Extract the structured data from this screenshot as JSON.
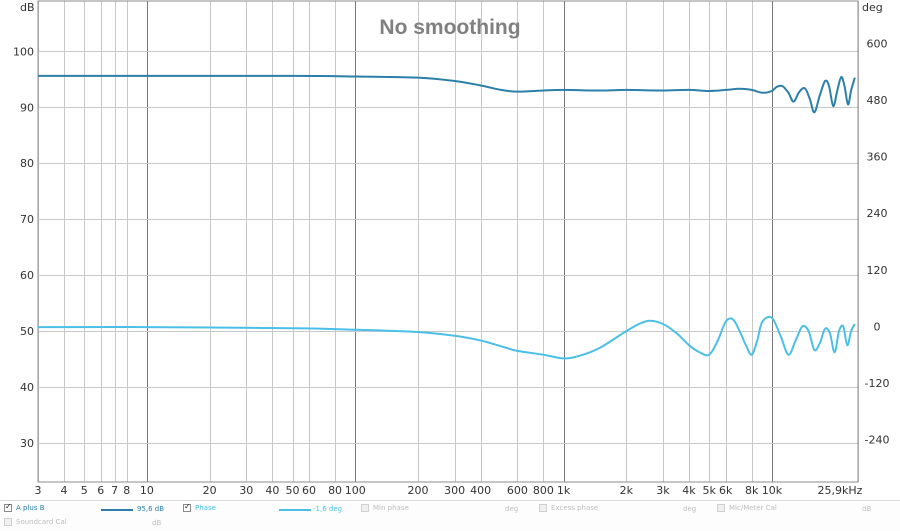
{
  "chart_data": {
    "type": "line",
    "title": "No smoothing",
    "xscale": "log",
    "xlim": [
      3,
      25900
    ],
    "x_ticks": [
      3,
      4,
      5,
      6,
      7,
      8,
      10,
      20,
      30,
      40,
      50,
      60,
      80,
      100,
      200,
      300,
      400,
      600,
      800,
      1000,
      2000,
      3000,
      4000,
      5000,
      6000,
      8000,
      10000,
      25900
    ],
    "x_tick_labels": [
      "3",
      "4",
      "5",
      "6",
      "7",
      "8",
      "10",
      "20",
      "30",
      "40",
      "50",
      "60",
      "80",
      "100",
      "200",
      "300",
      "400",
      "600",
      "800",
      "1k",
      "2k",
      "3k",
      "4k",
      "5k",
      "6k",
      "8k",
      "10k",
      "25,9kHz"
    ],
    "y_left": {
      "unit": "dB",
      "lim": [
        23,
        109
      ],
      "ticks": [
        30,
        40,
        50,
        60,
        70,
        80,
        90,
        100
      ]
    },
    "y_right": {
      "unit": "deg",
      "lim": [
        -330,
        690
      ],
      "ticks": [
        -240,
        -120,
        0,
        120,
        240,
        360,
        480,
        600
      ]
    },
    "grid": true,
    "series": [
      {
        "name": "A plus B",
        "axis": "left",
        "color": "#2b7fa8",
        "x": [
          3,
          10,
          50,
          100,
          200,
          300,
          400,
          500,
          600,
          800,
          1000,
          1500,
          2000,
          3000,
          4000,
          5000,
          6000,
          7000,
          8000,
          9000,
          10000,
          10500,
          11200,
          12000,
          12700,
          13500,
          14400,
          15200,
          16000,
          17000,
          18000,
          18800,
          19700,
          20600,
          21500,
          22300,
          23200,
          24000,
          25000
        ],
        "y": [
          95.6,
          95.6,
          95.6,
          95.5,
          95.3,
          94.7,
          93.9,
          93.1,
          92.8,
          93.0,
          93.1,
          93.0,
          93.1,
          93.0,
          93.1,
          92.9,
          93.1,
          93.3,
          93.1,
          92.6,
          92.9,
          93.6,
          93.8,
          92.6,
          91.0,
          92.7,
          93.4,
          91.5,
          89.1,
          92.2,
          94.7,
          93.8,
          90.2,
          93.0,
          95.4,
          93.8,
          90.5,
          93.0,
          95.3
        ]
      },
      {
        "name": "Phase",
        "axis": "right",
        "color": "#4bbfe8",
        "x": [
          3,
          10,
          50,
          100,
          200,
          300,
          400,
          500,
          600,
          800,
          1000,
          1200,
          1500,
          2000,
          2300,
          2600,
          3000,
          3500,
          4000,
          4500,
          5000,
          5500,
          6000,
          6500,
          7000,
          7500,
          8000,
          8500,
          9000,
          10000,
          11000,
          12000,
          13000,
          14000,
          15000,
          16000,
          17000,
          18000,
          19000,
          20000,
          21000,
          22000,
          23000,
          24000,
          25000
        ],
        "y": [
          -1.6,
          -1.6,
          -4,
          -7,
          -12,
          -20,
          -30,
          -42,
          -52,
          -60,
          -68,
          -62,
          -45,
          -10,
          5,
          12,
          5,
          -15,
          -40,
          -55,
          -60,
          -30,
          10,
          15,
          -10,
          -40,
          -60,
          -30,
          10,
          18,
          -20,
          -60,
          -30,
          0,
          -10,
          -50,
          -35,
          -5,
          -15,
          -55,
          -10,
          0,
          -40,
          -10,
          5
        ]
      }
    ]
  },
  "legend": {
    "items": [
      {
        "label": "A plus B",
        "checked": true,
        "enabled": true,
        "value": "95,6 dB",
        "swatch": "#2b7fa8"
      },
      {
        "label": "Phase",
        "checked": true,
        "enabled": true,
        "value": "-1,6 deg",
        "swatch": "#4bbfe8"
      },
      {
        "label": "Min phase",
        "checked": false,
        "enabled": false,
        "unit": "deg"
      },
      {
        "label": "Excess phase",
        "checked": false,
        "enabled": false,
        "unit": "deg"
      },
      {
        "label": "Mic/Meter Cal",
        "checked": false,
        "enabled": false,
        "unit": "dB"
      },
      {
        "label": "Soundcard Cal",
        "checked": false,
        "enabled": false,
        "unit": "dB"
      }
    ]
  }
}
